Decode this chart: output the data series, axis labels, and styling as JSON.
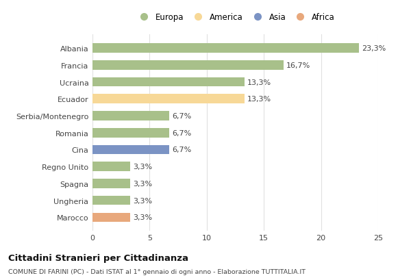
{
  "categories": [
    "Albania",
    "Francia",
    "Ucraina",
    "Ecuador",
    "Serbia/Montenegro",
    "Romania",
    "Cina",
    "Regno Unito",
    "Spagna",
    "Ungheria",
    "Marocco"
  ],
  "values": [
    23.3,
    16.7,
    13.3,
    13.3,
    6.7,
    6.7,
    6.7,
    3.3,
    3.3,
    3.3,
    3.3
  ],
  "labels": [
    "23,3%",
    "16,7%",
    "13,3%",
    "13,3%",
    "6,7%",
    "6,7%",
    "6,7%",
    "3,3%",
    "3,3%",
    "3,3%",
    "3,3%"
  ],
  "continents": [
    "Europa",
    "Europa",
    "Europa",
    "America",
    "Europa",
    "Europa",
    "Asia",
    "Europa",
    "Europa",
    "Europa",
    "Africa"
  ],
  "colors": {
    "Europa": "#a8c08a",
    "America": "#f7d897",
    "Asia": "#7b93c4",
    "Africa": "#e8a87c"
  },
  "legend_order": [
    "Europa",
    "America",
    "Asia",
    "Africa"
  ],
  "xlim": [
    0,
    25
  ],
  "xticks": [
    0,
    5,
    10,
    15,
    20,
    25
  ],
  "title": "Cittadini Stranieri per Cittadinanza",
  "subtitle": "COMUNE DI FARINI (PC) - Dati ISTAT al 1° gennaio di ogni anno - Elaborazione TUTTITALIA.IT",
  "bg_color": "#ffffff",
  "grid_color": "#e0e0e0",
  "bar_height": 0.55
}
